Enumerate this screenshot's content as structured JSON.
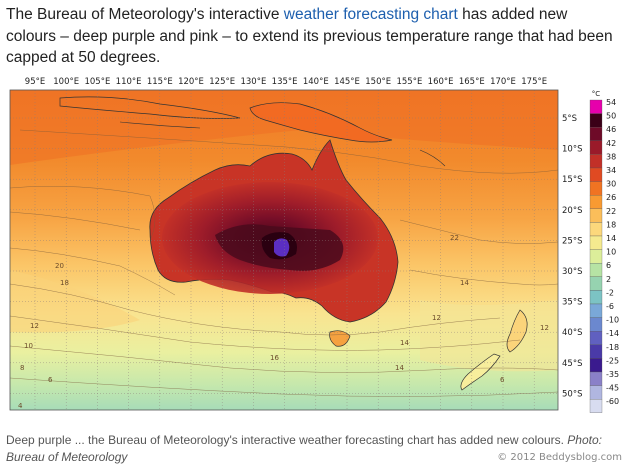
{
  "article": {
    "text_before_link": "The Bureau of Meteorology's interactive ",
    "link_text": "weather forecasting chart",
    "text_after_link": " has added new colours – deep purple and pink – to extend its previous temperature range that had been capped at 50 degrees."
  },
  "map": {
    "longitude_labels": [
      "95°E",
      "100°E",
      "105°E",
      "110°E",
      "115°E",
      "120°E",
      "125°E",
      "130°E",
      "135°E",
      "140°E",
      "145°E",
      "150°E",
      "155°E",
      "160°E",
      "165°E",
      "170°E",
      "175°E"
    ],
    "latitude_labels": [
      "5°S",
      "10°S",
      "15°S",
      "20°S",
      "25°S",
      "30°S",
      "35°S",
      "40°S",
      "45°S",
      "50°S"
    ],
    "contour_labels": [
      "20",
      "18",
      "12",
      "10",
      "8",
      "6",
      "4",
      "14",
      "12",
      "14",
      "16",
      "22",
      "14",
      "12",
      "6"
    ],
    "legend": {
      "unit": "°C",
      "values": [
        "54",
        "50",
        "46",
        "42",
        "38",
        "34",
        "30",
        "26",
        "22",
        "18",
        "14",
        "10",
        "6",
        "2",
        "-2",
        "-6",
        "-10",
        "-14",
        "-18",
        "-25",
        "-35",
        "-45",
        "-60"
      ],
      "colors": [
        "#e600ac",
        "#3a0017",
        "#6e0a28",
        "#9a1a2a",
        "#c23028",
        "#e04a22",
        "#f07322",
        "#f89a32",
        "#fbbe5a",
        "#fcd87c",
        "#f5ea8f",
        "#dcee9a",
        "#b6e3a4",
        "#96d3b0",
        "#7cc3c4",
        "#7aa8d8",
        "#6b88cf",
        "#6060c0",
        "#4a3aa8",
        "#3a1a8e",
        "#8a80c8",
        "#b0b6e0",
        "#d8dcf0"
      ]
    }
  },
  "caption": {
    "lead": "Deep purple ... the Bureau of Meteorology's interactive weather forecasting chart has added new colours. ",
    "credit": "Photo: Bureau of Meteorology"
  },
  "watermark": "© 2012 Beddysblog.com"
}
